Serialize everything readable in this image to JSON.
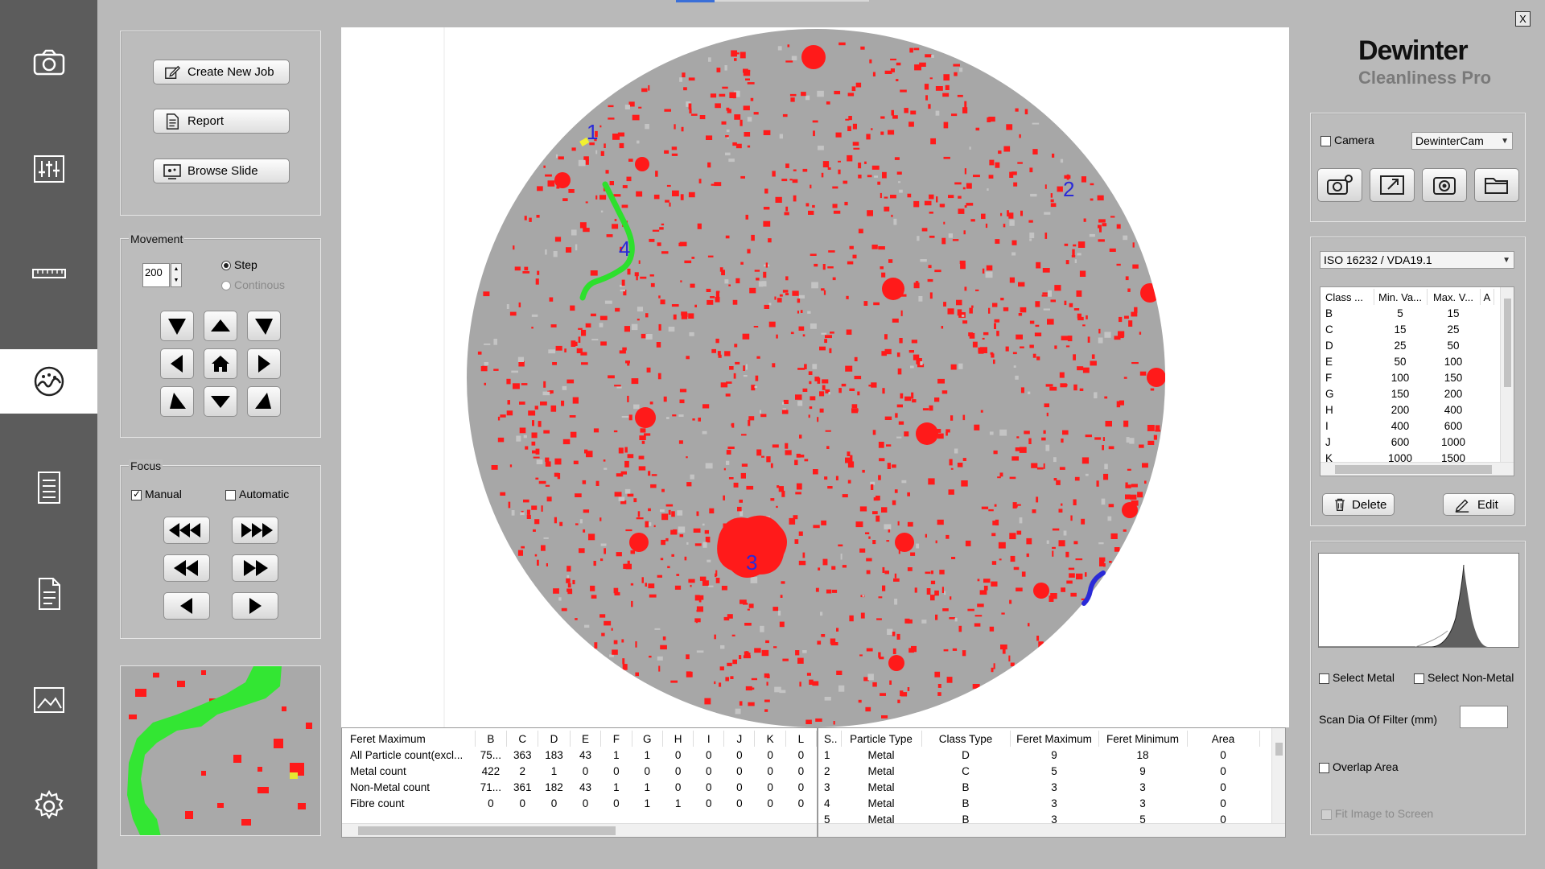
{
  "nav": {
    "items": [
      "camera-icon",
      "sliders-icon",
      "ruler-icon",
      "analysis-icon",
      "list-icon",
      "document-icon",
      "chart-icon",
      "settings-icon"
    ],
    "active_index": 3
  },
  "window": {
    "close_label": "X"
  },
  "jobs": {
    "create_new_job": "Create New Job",
    "report": "Report",
    "browse_slide": "Browse Slide"
  },
  "movement": {
    "title": "Movement",
    "step_value": "200",
    "step_label": "Step",
    "continuous_label": "Continous"
  },
  "focus": {
    "title": "Focus",
    "manual_label": "Manual",
    "automatic_label": "Automatic"
  },
  "image": {
    "particle_labels": [
      "1",
      "2",
      "3",
      "4"
    ]
  },
  "class_table": {
    "title": "Feret Maximum",
    "columns": [
      "B",
      "C",
      "D",
      "E",
      "F",
      "G",
      "H",
      "I",
      "J",
      "K",
      "L"
    ],
    "rows": [
      {
        "label": "All Particle count(excl...",
        "values": [
          "75...",
          "363",
          "183",
          "43",
          "1",
          "1",
          "0",
          "0",
          "0",
          "0",
          "0"
        ]
      },
      {
        "label": "Metal count",
        "values": [
          "422",
          "2",
          "1",
          "0",
          "0",
          "0",
          "0",
          "0",
          "0",
          "0",
          "0"
        ]
      },
      {
        "label": "Non-Metal count",
        "values": [
          "71...",
          "361",
          "182",
          "43",
          "1",
          "1",
          "0",
          "0",
          "0",
          "0",
          "0"
        ]
      },
      {
        "label": "Fibre count",
        "values": [
          "0",
          "0",
          "0",
          "0",
          "0",
          "1",
          "1",
          "0",
          "0",
          "0",
          "0"
        ]
      }
    ]
  },
  "particle_table": {
    "columns": [
      "S..",
      "Particle Type",
      "Class Type",
      "Feret Maximum",
      "Feret Minimum",
      "Area"
    ],
    "rows": [
      [
        "1",
        "Metal",
        "D",
        "9",
        "18",
        "0"
      ],
      [
        "2",
        "Metal",
        "C",
        "5",
        "9",
        "0"
      ],
      [
        "3",
        "Metal",
        "B",
        "3",
        "3",
        "0"
      ],
      [
        "4",
        "Metal",
        "B",
        "3",
        "3",
        "0"
      ],
      [
        "5",
        "Metal",
        "B",
        "3",
        "5",
        "0"
      ]
    ]
  },
  "brand": {
    "name": "Dewinter",
    "product": "Cleanliness Pro"
  },
  "camera": {
    "checkbox_label": "Camera",
    "selected": "DewinterCam"
  },
  "standard": {
    "selected": "ISO 16232 /  VDA19.1",
    "columns": [
      "Class ...",
      "Min. Va...",
      "Max. V...",
      "A"
    ],
    "rows": [
      [
        "B",
        "5",
        "15"
      ],
      [
        "C",
        "15",
        "25"
      ],
      [
        "D",
        "25",
        "50"
      ],
      [
        "E",
        "50",
        "100"
      ],
      [
        "F",
        "100",
        "150"
      ],
      [
        "G",
        "150",
        "200"
      ],
      [
        "H",
        "200",
        "400"
      ],
      [
        "I",
        "400",
        "600"
      ],
      [
        "J",
        "600",
        "1000"
      ],
      [
        "K",
        "1000",
        "1500"
      ]
    ],
    "delete_label": "Delete",
    "edit_label": "Edit"
  },
  "filter": {
    "select_metal": "Select Metal",
    "select_non_metal": "Select Non-Metal",
    "scan_dia_label": "Scan Dia Of Filter (mm)",
    "scan_dia_value": "",
    "overlap_area": "Overlap Area",
    "fit_image": "Fit Image  to Screen"
  },
  "colors": {
    "nav_bg": "#5c5c5c",
    "particle_red": "#ff1a1a",
    "fibre_green": "#2de02d",
    "label_blue": "#2a2ad8",
    "filter_gray": "#a9a9a9"
  }
}
